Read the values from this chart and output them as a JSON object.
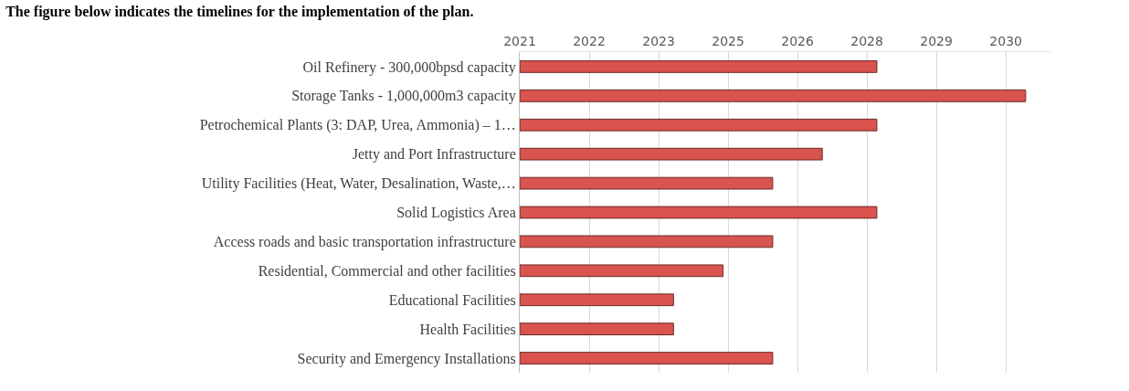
{
  "chart_data": {
    "type": "bar",
    "orientation": "horizontal",
    "title": "The figure below indicates the timelines for the implementation of the plan.",
    "categories": [
      "Oil Refinery - 300,000bpsd capacity",
      "Storage Tanks - 1,000,000m3 capacity",
      "Petrochemical Plants (3: DAP, Urea, Ammonia) – 1…",
      "Jetty and Port Infrastructure",
      "Utility Facilities (Heat, Water, Desalination, Waste,…",
      "Solid Logistics Area",
      "Access roads and basic transportation infrastructure",
      "Residential, Commercial and other facilities",
      "Educational Facilities",
      "Health Facilities",
      "Security and Emergency Installations"
    ],
    "base": [
      2020.6,
      2020.6,
      2020.6,
      2020.6,
      2020.6,
      2020.6,
      2020.6,
      2020.6,
      2020.6,
      2020.6,
      2020.6
    ],
    "values": [
      7.2,
      10.2,
      7.2,
      6.1,
      5.1,
      7.2,
      5.1,
      4.1,
      3.1,
      3.1,
      5.1
    ],
    "color": "#d9534f",
    "xlim": [
      2020.6,
      2031.3
    ],
    "xticks": [
      {
        "value": 2020.6,
        "label": "2021"
      },
      {
        "value": 2022.0,
        "label": "2022"
      },
      {
        "value": 2023.4,
        "label": "2023"
      },
      {
        "value": 2024.8,
        "label": "2025"
      },
      {
        "value": 2026.2,
        "label": "2026"
      },
      {
        "value": 2027.6,
        "label": "2028"
      },
      {
        "value": 2029.0,
        "label": "2029"
      },
      {
        "value": 2030.4,
        "label": "2030"
      }
    ],
    "grid": "x",
    "legend": false
  }
}
